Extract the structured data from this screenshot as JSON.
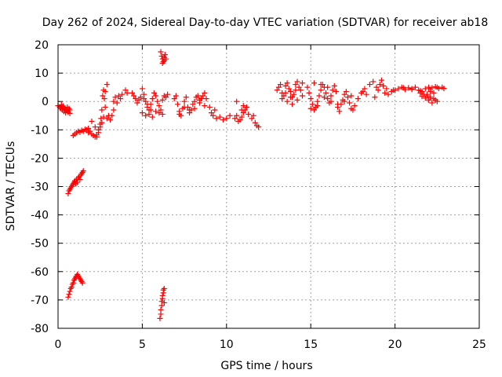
{
  "chart_data": {
    "type": "scatter",
    "title": "Day 262 of 2024, Sidereal Day-to-day VTEC variation (SDTVAR) for receiver ab18",
    "xlabel": "GPS time / hours",
    "ylabel": "SDTVAR / TECUs",
    "xlim": [
      0,
      25
    ],
    "ylim": [
      -80,
      20
    ],
    "xticks": [
      0,
      5,
      10,
      15,
      20,
      25
    ],
    "yticks": [
      -80,
      -70,
      -60,
      -50,
      -40,
      -30,
      -20,
      -10,
      0,
      10,
      20
    ],
    "grid": true,
    "marker": "plus",
    "color": "#ff0000",
    "series": [
      {
        "name": "SDTVAR",
        "x": [
          0.0,
          0.1,
          0.15,
          0.2,
          0.25,
          0.3,
          0.35,
          0.4,
          0.45,
          0.5,
          0.55,
          0.6,
          0.65,
          0.7,
          0.2,
          0.3,
          0.4,
          0.5,
          0.6,
          0.7,
          0.9,
          1.0,
          1.1,
          1.2,
          1.3,
          1.4,
          1.5,
          1.6,
          1.7,
          1.8,
          1.8,
          1.9,
          2.0,
          2.1,
          2.2,
          2.3,
          2.4,
          2.0,
          2.2,
          2.4,
          2.3,
          2.4,
          2.5,
          2.55,
          2.6,
          2.65,
          2.7,
          2.75,
          2.8,
          2.9,
          3.0,
          2.5,
          2.6,
          2.7,
          2.8,
          2.9,
          3.1,
          3.2,
          3.3,
          3.3,
          3.4,
          3.5,
          3.6,
          3.7,
          3.8,
          4.0,
          4.1,
          4.4,
          4.5,
          4.6,
          4.7,
          4.8,
          4.9,
          5.0,
          5.1,
          5.2,
          5.3,
          5.4,
          5.5,
          5.6,
          5.7,
          5.8,
          5.9,
          6.0,
          6.1,
          6.2,
          6.3,
          6.4,
          6.5,
          5.0,
          5.2,
          5.4,
          5.6,
          5.8,
          6.0,
          6.2,
          5.1,
          5.3,
          5.5,
          6.1,
          6.15,
          6.2,
          6.25,
          6.3,
          6.35,
          6.4,
          6.2,
          6.3,
          6.9,
          7.0,
          7.1,
          7.2,
          7.3,
          7.4,
          7.5,
          7.6,
          7.7,
          7.8,
          7.9,
          8.0,
          8.1,
          8.2,
          8.3,
          8.4,
          8.5,
          8.6,
          8.7,
          8.8,
          7.2,
          7.5,
          7.8,
          8.1,
          8.4,
          8.7,
          9.0,
          9.1,
          9.2,
          9.3,
          9.4,
          9.6,
          9.8,
          10.0,
          10.2,
          10.5,
          10.6,
          10.7,
          10.8,
          10.9,
          11.0,
          11.1,
          11.2,
          11.3,
          11.5,
          11.6,
          11.7,
          11.8,
          11.9,
          10.6,
          10.9,
          11.0,
          0.6,
          0.65,
          0.7,
          0.75,
          0.8,
          0.85,
          0.9,
          0.95,
          1.0,
          1.05,
          1.1,
          1.15,
          1.2,
          1.25,
          1.3,
          1.35,
          1.4,
          1.45,
          1.5,
          0.6,
          0.65,
          0.7,
          0.75,
          0.8,
          0.85,
          0.9,
          0.95,
          1.0,
          1.05,
          1.1,
          1.15,
          1.2,
          1.25,
          1.3,
          1.35,
          1.4,
          1.45,
          6.05,
          6.1,
          6.1,
          6.15,
          6.15,
          6.2,
          6.2,
          6.25,
          6.25,
          6.3,
          6.3,
          13.0,
          13.1,
          13.2,
          13.3,
          13.4,
          13.5,
          13.6,
          13.7,
          13.8,
          13.9,
          14.0,
          14.1,
          14.2,
          14.3,
          14.4,
          14.5,
          13.3,
          13.6,
          13.9,
          14.2,
          14.5,
          13.5,
          13.8,
          14.1,
          14.8,
          14.9,
          15.0,
          15.1,
          15.2,
          15.3,
          15.4,
          15.5,
          15.6,
          15.7,
          15.8,
          15.9,
          16.0,
          16.1,
          16.2,
          16.3,
          16.4,
          16.5,
          15.0,
          15.4,
          15.8,
          16.2,
          16.6,
          15.2,
          15.6,
          16.0,
          16.6,
          16.7,
          16.8,
          16.9,
          17.0,
          17.1,
          17.2,
          17.3,
          17.4,
          17.5,
          17.6,
          17.8,
          18.0,
          18.2,
          18.3,
          18.5,
          18.7,
          18.9,
          19.0,
          19.1,
          19.2,
          19.3,
          19.4,
          19.6,
          19.8,
          19.9,
          17.0,
          17.4,
          18.1,
          18.8,
          19.5,
          20.0,
          20.2,
          20.4,
          20.6,
          20.8,
          21.0,
          21.2,
          21.4,
          21.6,
          21.8,
          22.0,
          22.2,
          22.4,
          22.6,
          22.8,
          21.5,
          21.7,
          21.9,
          22.1,
          22.3,
          22.5,
          21.6,
          21.8,
          22.0,
          22.2,
          22.4,
          21.9,
          22.1,
          22.3,
          20.5,
          21.0,
          21.5,
          22.0,
          22.5,
          22.9
        ],
        "y": [
          -1.5,
          -2.0,
          -2.5,
          -1.8,
          -3.0,
          -2.2,
          -3.5,
          -2.8,
          -4.0,
          -3.2,
          -2.0,
          -3.8,
          -2.5,
          -3.0,
          -1.2,
          -1.6,
          -2.4,
          -2.9,
          -3.6,
          -4.2,
          -12.0,
          -11.5,
          -11.0,
          -10.5,
          -10.8,
          -10.2,
          -10.5,
          -9.8,
          -10.0,
          -9.5,
          -11.0,
          -10.5,
          -11.5,
          -12.0,
          -12.5,
          -11.8,
          -11.0,
          -7.0,
          -9.0,
          -10.0,
          -12.5,
          -10.0,
          -8.0,
          -6.0,
          -3.0,
          2.0,
          4.0,
          1.0,
          -2.0,
          -6.0,
          -5.0,
          -9.0,
          -7.5,
          -5.5,
          3.5,
          6.0,
          -6.5,
          -5.0,
          -3.0,
          0.0,
          1.5,
          -0.5,
          2.0,
          1.0,
          2.5,
          4.0,
          3.0,
          3.0,
          2.0,
          1.0,
          -0.5,
          0.5,
          1.5,
          4.5,
          2.5,
          0.0,
          -2.0,
          -3.0,
          -1.0,
          1.0,
          3.0,
          2.0,
          0.0,
          -1.5,
          -3.0,
          0.5,
          2.0,
          1.5,
          2.5,
          -4.0,
          -5.0,
          -4.5,
          -5.5,
          -3.5,
          -4.0,
          -4.5,
          1.0,
          -1.0,
          -3.0,
          17.5,
          16.0,
          15.0,
          14.0,
          15.5,
          16.5,
          15.0,
          13.5,
          14.5,
          1.0,
          2.0,
          -1.0,
          -3.5,
          -5.0,
          -2.5,
          0.0,
          1.5,
          -2.0,
          -4.0,
          -3.0,
          -1.0,
          0.0,
          1.5,
          2.0,
          -0.5,
          1.0,
          2.0,
          3.0,
          1.0,
          -4.5,
          -2.0,
          -3.0,
          -2.5,
          0.5,
          -1.5,
          -2.0,
          -4.0,
          -5.0,
          -3.0,
          -6.0,
          -5.5,
          -6.5,
          -6.0,
          -5.0,
          -6.0,
          -5.0,
          -7.0,
          -6.5,
          -5.5,
          -4.0,
          -3.0,
          -2.0,
          -4.5,
          -6.0,
          -5.0,
          -7.5,
          -8.5,
          -9.0,
          0.0,
          -3.0,
          -1.5,
          -32.5,
          -31.5,
          -31.0,
          -30.5,
          -30.0,
          -29.5,
          -29.0,
          -28.5,
          -28.0,
          -29.0,
          -27.5,
          -28.5,
          -27.0,
          -26.5,
          -27.5,
          -26.0,
          -25.5,
          -25.0,
          -24.5,
          -69.0,
          -68.0,
          -67.0,
          -66.0,
          -65.5,
          -64.5,
          -64.0,
          -63.0,
          -62.5,
          -62.0,
          -61.5,
          -61.0,
          -61.5,
          -62.0,
          -62.5,
          -63.0,
          -63.5,
          -64.0,
          -76.5,
          -75.0,
          -73.5,
          -72.0,
          -70.5,
          -69.5,
          -68.5,
          -67.5,
          -66.5,
          -66.0,
          -71.0,
          4.0,
          5.0,
          6.0,
          3.0,
          2.0,
          5.5,
          6.5,
          4.5,
          3.5,
          1.5,
          2.5,
          6.0,
          7.0,
          5.0,
          4.0,
          6.5,
          1.0,
          0.0,
          -1.0,
          0.5,
          2.0,
          3.0,
          1.5,
          4.0,
          5.0,
          3.0,
          1.0,
          -1.0,
          -3.0,
          -2.0,
          0.0,
          2.0,
          4.0,
          6.0,
          5.0,
          3.0,
          1.0,
          -0.5,
          2.0,
          4.0,
          5.5,
          3.5,
          -2.5,
          -1.5,
          1.5,
          0.0,
          -1.0,
          6.5,
          6.0,
          5.0,
          -2.0,
          -3.5,
          -1.0,
          0.5,
          2.5,
          3.5,
          1.5,
          -0.5,
          -2.5,
          -3.0,
          -1.5,
          1.0,
          3.0,
          4.5,
          2.5,
          6.0,
          7.0,
          5.0,
          4.0,
          6.0,
          7.5,
          5.5,
          3.0,
          2.5,
          3.5,
          4.0,
          0.0,
          2.0,
          3.5,
          1.5,
          4.5,
          4.0,
          4.5,
          5.0,
          4.2,
          4.8,
          4.5,
          5.0,
          4.0,
          3.5,
          4.5,
          5.0,
          4.8,
          5.2,
          4.6,
          5.0,
          3.0,
          2.5,
          2.0,
          1.5,
          1.0,
          0.0,
          1.8,
          1.2,
          0.5,
          -0.5,
          0.5,
          2.5,
          3.5,
          3.0,
          4.8,
          4.2,
          3.8,
          4.5,
          5.0,
          4.6
        ]
      }
    ]
  }
}
